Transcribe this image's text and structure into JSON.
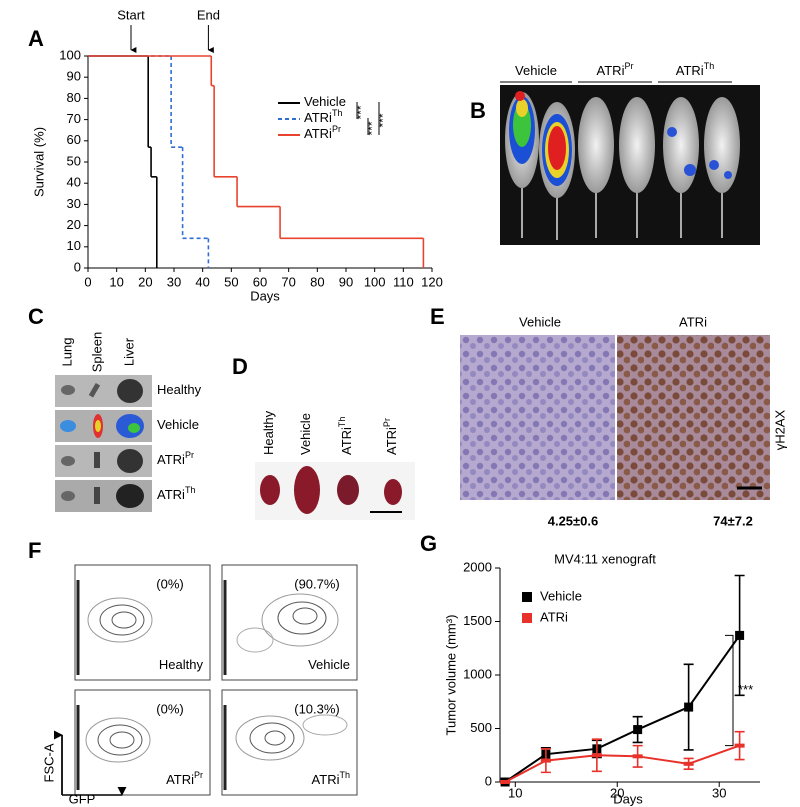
{
  "chart_data": [
    {
      "type": "step",
      "panel": "A",
      "ylabel": "Survival (%)",
      "xlabel": "Days",
      "xlim": [
        0,
        120
      ],
      "ylim": [
        0,
        100
      ],
      "xticks": [
        0,
        10,
        20,
        30,
        40,
        50,
        60,
        70,
        80,
        90,
        100,
        110,
        120
      ],
      "yticks": [
        0,
        10,
        20,
        30,
        40,
        50,
        60,
        70,
        80,
        90,
        100
      ],
      "series": [
        {
          "name": "Vehicle",
          "color": "#000000",
          "dashed": false,
          "x": [
            0,
            21,
            22,
            24
          ],
          "values": [
            100,
            57,
            43,
            0
          ]
        },
        {
          "name": "ATRi",
          "superscript": "Th",
          "color": "#2f6fd0",
          "dashed": true,
          "x": [
            0,
            29,
            33,
            42
          ],
          "values": [
            100,
            57,
            14,
            0
          ]
        },
        {
          "name": "ATRi",
          "superscript": "Pr",
          "color": "#e8432e",
          "dashed": false,
          "x": [
            0,
            43,
            44,
            52,
            67,
            117
          ],
          "values": [
            100,
            86,
            43,
            29,
            14,
            0
          ]
        }
      ],
      "annotations": [
        {
          "text": "Start",
          "x": 15
        },
        {
          "text": "End",
          "x": 42
        }
      ],
      "significance": [
        "***",
        "***",
        "***"
      ]
    },
    {
      "type": "line",
      "panel": "G",
      "title": "MV4:11 xenograft",
      "ylabel": "Tumor volume (mm³)",
      "xlabel": "Days",
      "x": [
        9,
        13,
        18,
        22,
        27,
        32
      ],
      "xlim": [
        8.5,
        34
      ],
      "ylim": [
        0,
        2000
      ],
      "xticks": [
        10,
        20,
        30
      ],
      "yticks": [
        0,
        500,
        1000,
        1500,
        2000
      ],
      "series": [
        {
          "name": "Vehicle",
          "color": "#000000",
          "values": [
            0,
            260,
            310,
            490,
            700,
            1370
          ],
          "errors": [
            0,
            60,
            80,
            120,
            400,
            560
          ]
        },
        {
          "name": "ATRi",
          "color": "#e8312a",
          "values": [
            0,
            200,
            250,
            240,
            170,
            340
          ],
          "errors": [
            0,
            110,
            150,
            100,
            50,
            130
          ]
        }
      ],
      "significance": "***"
    }
  ],
  "panels": {
    "B": {
      "letter": "B",
      "groups": [
        [
          "Vehicle"
        ],
        [
          "ATRi",
          "Pr"
        ],
        [
          "ATRi",
          "Th"
        ]
      ]
    },
    "C": {
      "letter": "C",
      "columns": [
        "Lung",
        "Spleen",
        "Liver"
      ],
      "rows": [
        [
          "Healthy"
        ],
        [
          "Vehicle"
        ],
        [
          "ATRi",
          "Pr"
        ],
        [
          "ATRi",
          "Th"
        ]
      ]
    },
    "D": {
      "letter": "D",
      "labels": [
        [
          "Healthy"
        ],
        [
          "Vehicle"
        ],
        [
          "ATRi",
          "Th"
        ],
        [
          "ATRi",
          "Pr"
        ]
      ]
    },
    "E": {
      "letter": "E",
      "columns": [
        "Vehicle",
        "ATRi"
      ],
      "stain": "γH2AX",
      "quantification": [
        "4.25±0.6",
        "74±7.2"
      ]
    },
    "F": {
      "letter": "F",
      "plots": [
        {
          "percent": "(0%)",
          "label": [
            "Healthy"
          ]
        },
        {
          "percent": "(90.7%)",
          "label": [
            "Vehicle"
          ]
        },
        {
          "percent": "(0%)",
          "label": [
            "ATRi",
            "Pr"
          ]
        },
        {
          "percent": "(10.3%)",
          "label": [
            "ATRi",
            "Th"
          ]
        }
      ],
      "y_axis": "FSC-A",
      "x_axis": "GFP"
    }
  }
}
